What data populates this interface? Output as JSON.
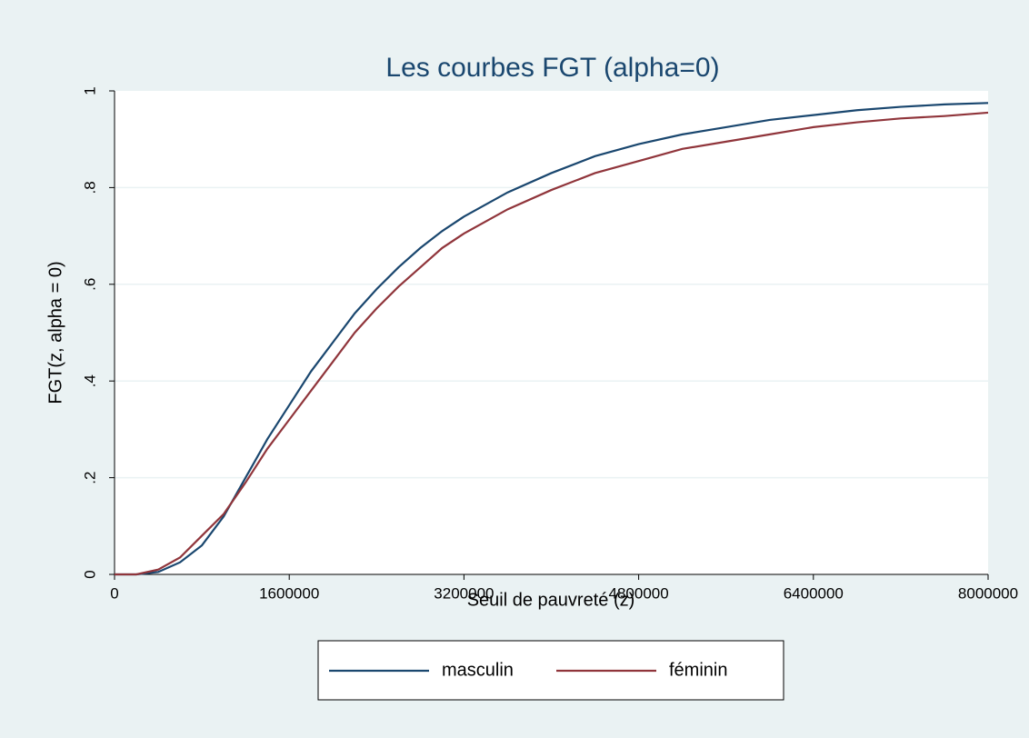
{
  "chart_data": {
    "type": "line",
    "title": "Les courbes FGT (alpha=0)",
    "xlabel": "Seuil de pauvreté (z)",
    "ylabel": "FGT(z, alpha = 0)",
    "x": [
      0,
      200000,
      400000,
      600000,
      800000,
      1000000,
      1200000,
      1400000,
      1600000,
      1800000,
      2000000,
      2200000,
      2400000,
      2600000,
      2800000,
      3000000,
      3200000,
      3600000,
      4000000,
      4400000,
      4800000,
      5200000,
      5600000,
      6000000,
      6400000,
      6800000,
      7200000,
      7600000,
      8000000
    ],
    "series": [
      {
        "name": "masculin",
        "color": "#1a476f",
        "values": [
          0,
          0,
          0.005,
          0.025,
          0.06,
          0.12,
          0.2,
          0.28,
          0.35,
          0.42,
          0.48,
          0.54,
          0.59,
          0.635,
          0.675,
          0.71,
          0.74,
          0.79,
          0.83,
          0.865,
          0.89,
          0.91,
          0.925,
          0.94,
          0.95,
          0.96,
          0.967,
          0.972,
          0.975
        ]
      },
      {
        "name": "féminin",
        "color": "#90353b",
        "values": [
          0,
          0,
          0.01,
          0.035,
          0.08,
          0.125,
          0.19,
          0.26,
          0.32,
          0.38,
          0.44,
          0.5,
          0.55,
          0.595,
          0.635,
          0.675,
          0.705,
          0.755,
          0.795,
          0.83,
          0.855,
          0.88,
          0.895,
          0.91,
          0.925,
          0.935,
          0.943,
          0.948,
          0.955
        ]
      }
    ],
    "xlim": [
      0,
      8000000
    ],
    "xticks": [
      0,
      1600000,
      3200000,
      4800000,
      6400000,
      8000000
    ],
    "ylim": [
      0,
      1
    ],
    "yticks": [
      0,
      {
        "value": 0.2,
        "label": ".2"
      },
      {
        "value": 0.4,
        "label": ".4"
      },
      {
        "value": 0.6,
        "label": ".6"
      },
      {
        "value": 0.8,
        "label": ".8"
      },
      1
    ],
    "grid": true,
    "legend": "bottom"
  }
}
